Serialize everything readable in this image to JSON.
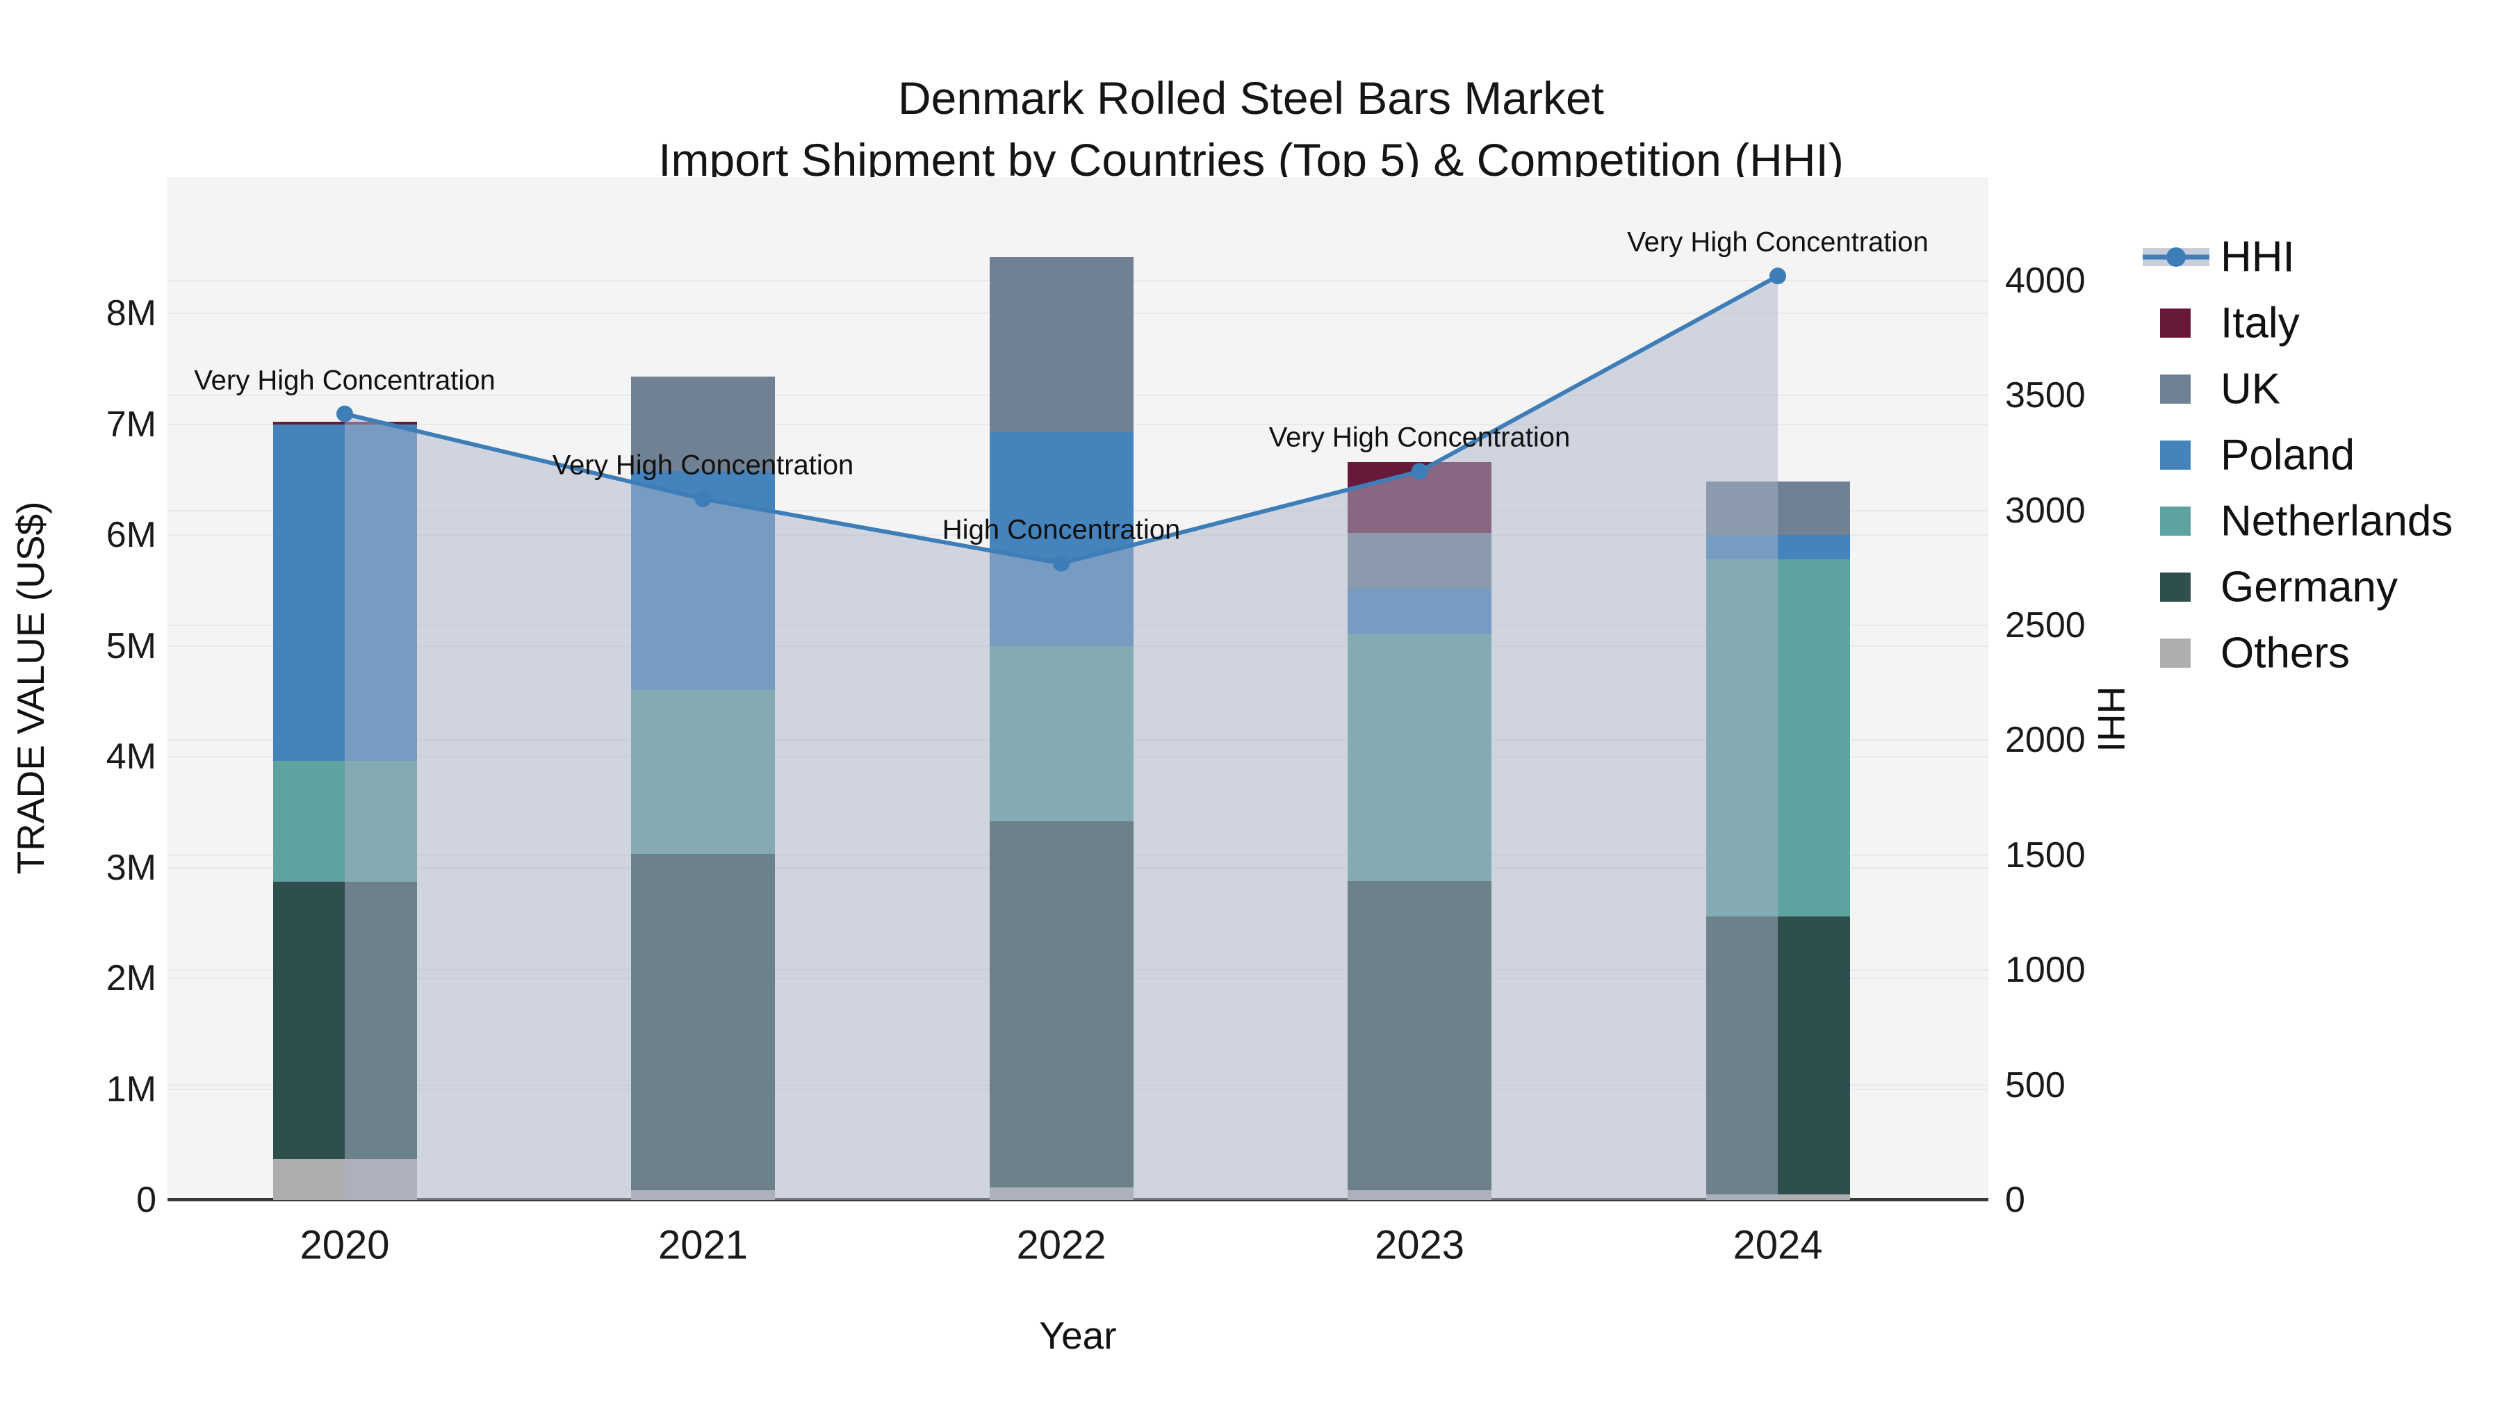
{
  "title": {
    "line1": "Denmark Rolled Steel Bars Market",
    "line2": "Import Shipment by Countries (Top 5) & Competition (HHI)"
  },
  "axes": {
    "left": {
      "title": "TRADE VALUE (US$)",
      "ticks": [
        "0",
        "1M",
        "2M",
        "3M",
        "4M",
        "5M",
        "6M",
        "7M",
        "8M"
      ]
    },
    "right": {
      "title": "HHI",
      "ticks": [
        "0",
        "500",
        "1000",
        "1500",
        "2000",
        "2500",
        "3000",
        "3500",
        "4000"
      ]
    },
    "x": {
      "title": "Year",
      "categories": [
        "2020",
        "2021",
        "2022",
        "2023",
        "2024"
      ]
    }
  },
  "legend": {
    "items": [
      {
        "label": "HHI",
        "type": "line",
        "color": "#3d7db8",
        "band": "#c9cfda"
      },
      {
        "label": "Italy",
        "type": "patch",
        "color": "#68193a"
      },
      {
        "label": "UK",
        "type": "patch",
        "color": "#6f8193"
      },
      {
        "label": "Poland",
        "type": "patch",
        "color": "#4483bb"
      },
      {
        "label": "Netherlands",
        "type": "patch",
        "color": "#5fa3a0"
      },
      {
        "label": "Germany",
        "type": "patch",
        "color": "#2f4f4c"
      },
      {
        "label": "Others",
        "type": "patch",
        "color": "#aeaeae"
      }
    ]
  },
  "annotations": [
    {
      "text": "Very High Concentration",
      "year": "2020"
    },
    {
      "text": "Very High Concentration",
      "year": "2021"
    },
    {
      "text": "High Concentration",
      "year": "2022"
    },
    {
      "text": "Very High Concentration",
      "year": "2023"
    },
    {
      "text": "Very High Concentration",
      "year": "2024"
    }
  ],
  "colors": {
    "plot_background": "#f4f4f5",
    "grid": "#e9e9eb",
    "axis_line": "#3a3a3a",
    "text": "#111111",
    "hhi_line": "#3d7db8",
    "hhi_area_fill": "#aab4c8",
    "hhi_area_alpha": 0.5
  },
  "chart_data": {
    "type": "combo: stacked-bar + line-area (dual axis)",
    "x": [
      "2020",
      "2021",
      "2022",
      "2023",
      "2024"
    ],
    "bar_unit": "M US$",
    "bar_stack_order_bottom_to_top": [
      "Others",
      "Germany",
      "Netherlands",
      "Poland",
      "UK",
      "Italy"
    ],
    "bar_series": [
      {
        "name": "Others",
        "color": "#aeaeae",
        "values": [
          0.37,
          0.09,
          0.11,
          0.09,
          0.05
        ]
      },
      {
        "name": "Germany",
        "color": "#2f4f4c",
        "values": [
          2.5,
          3.03,
          3.31,
          2.79,
          2.51
        ]
      },
      {
        "name": "Netherlands",
        "color": "#5fa3a0",
        "values": [
          1.09,
          1.48,
          1.58,
          2.23,
          3.22
        ]
      },
      {
        "name": "Poland",
        "color": "#4483bb",
        "values": [
          3.04,
          1.98,
          1.93,
          0.41,
          0.22
        ]
      },
      {
        "name": "UK",
        "color": "#6f8193",
        "values": [
          0.0,
          0.85,
          1.58,
          0.5,
          0.48
        ]
      },
      {
        "name": "Italy",
        "color": "#68193a",
        "values": [
          0.02,
          0.0,
          0.0,
          0.64,
          0.0
        ]
      }
    ],
    "bar_totals": [
      7.02,
      7.43,
      8.51,
      6.66,
      6.48
    ],
    "line_series": {
      "name": "HHI",
      "color": "#3d7db8",
      "values": [
        3420,
        3050,
        2770,
        3170,
        4020
      ]
    },
    "title": "Denmark Rolled Steel Bars Market — Import Shipment by Countries (Top 5) & Competition (HHI)",
    "xlabel": "Year",
    "ylabel_left": "TRADE VALUE (US$)",
    "ylabel_right": "HHI",
    "ylim_left": [
      0,
      9.23
    ],
    "ylim_right": [
      0,
      4450
    ],
    "grid": true,
    "legend_position": "right"
  }
}
